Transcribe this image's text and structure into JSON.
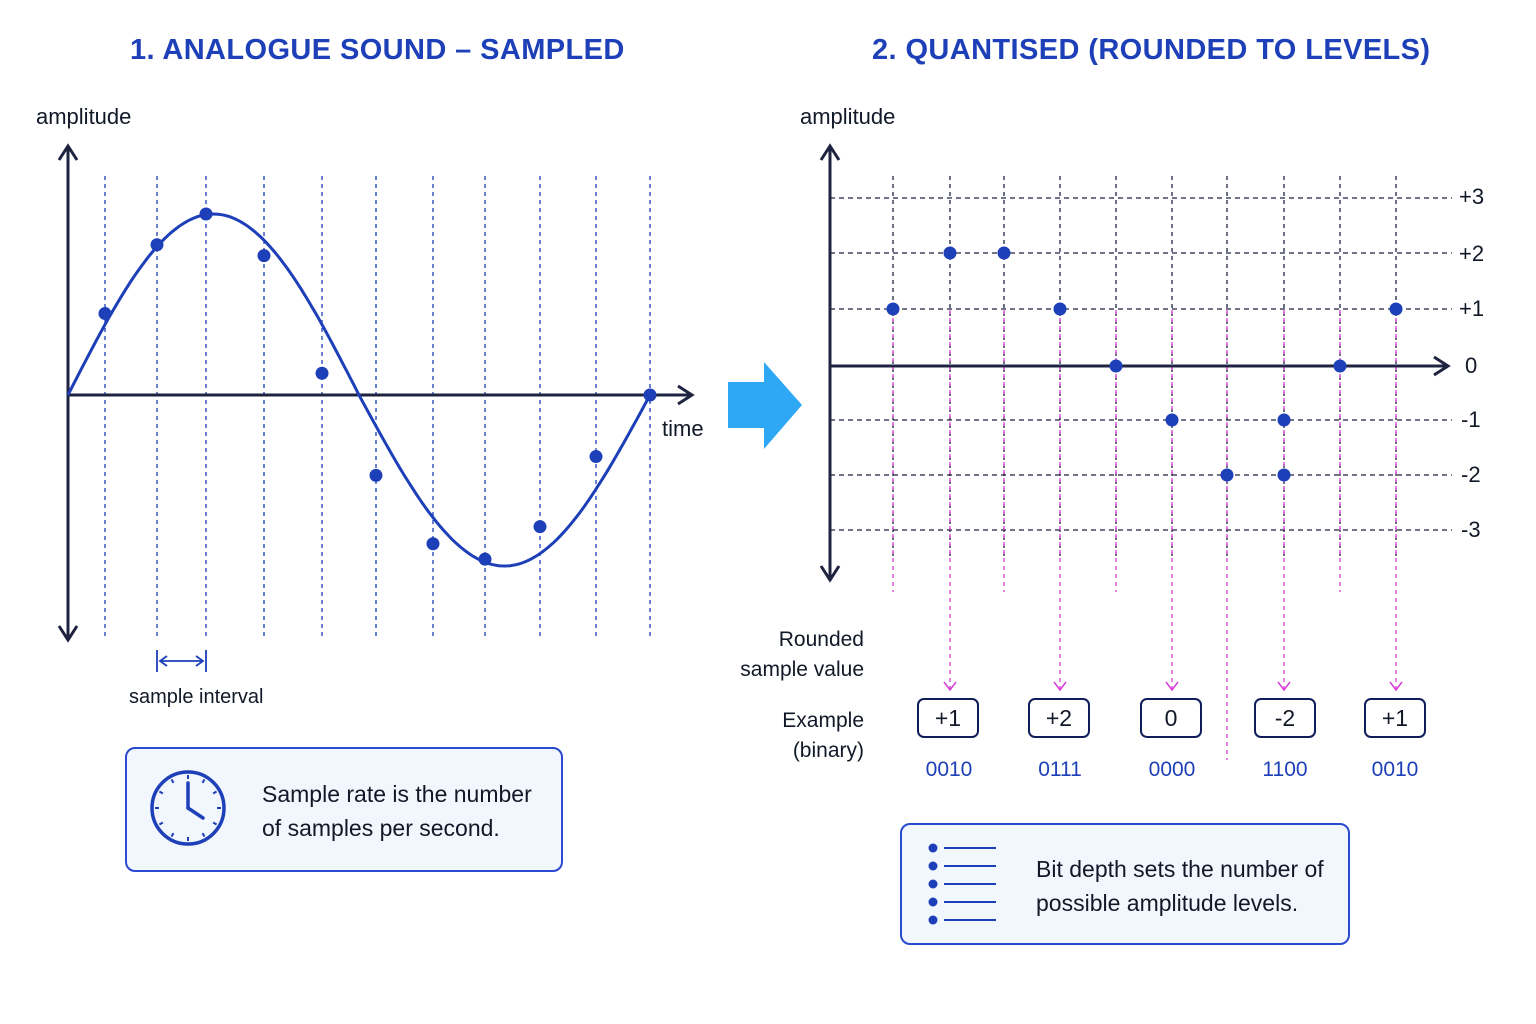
{
  "left_panel": {
    "title": "1.  ANALOGUE SOUND – SAMPLED",
    "y_axis_label": "amplitude",
    "x_axis_label": "time",
    "interval_label": "sample interval",
    "info": {
      "emphasis": "Sample rate",
      "text": " is the number of samples per second."
    },
    "icon": "clock-icon"
  },
  "right_panel": {
    "title": "2. QUANTISED (ROUNDED TO LEVELS)",
    "y_axis_label": "amplitude",
    "rounded_label": "Rounded sample value",
    "example_label": "Example (binary)",
    "info": {
      "emphasis": "Bit depth",
      "text": " sets the number of possible amplitude levels."
    },
    "icon": "list-icon",
    "values": [
      {
        "value": "+1",
        "binary": "0010"
      },
      {
        "value": "+2",
        "binary": "0111"
      },
      {
        "value": "0",
        "binary": "0000"
      },
      {
        "value": "-2",
        "binary": "1100"
      },
      {
        "value": "+1",
        "binary": "0010"
      }
    ]
  },
  "colors": {
    "accent": "#1d3fb8",
    "curve": "#1d3fb8",
    "point": "#1d3fb8",
    "guide": "#d63fd6",
    "arrow": "#2ea8f5",
    "box_border": "#2a4bd1",
    "box_fill": "#f2f6fd"
  },
  "chart_data": [
    {
      "type": "line",
      "title": "1.  ANALOGUE SOUND – SAMPLED",
      "xlabel": "time",
      "ylabel": "amplitude",
      "curve": "one cycle of a sine wave starting at 0",
      "samples": [
        {
          "x": 1,
          "y": 0.45
        },
        {
          "x": 2,
          "y": 0.83
        },
        {
          "x": 3,
          "y": 1.0
        },
        {
          "x": 4,
          "y": 0.77
        },
        {
          "x": 5,
          "y": 0.12
        },
        {
          "x": 6,
          "y": -0.47
        },
        {
          "x": 7,
          "y": -0.87
        },
        {
          "x": 8,
          "y": -0.96
        },
        {
          "x": 9,
          "y": -0.77
        },
        {
          "x": 10,
          "y": -0.36
        },
        {
          "x": 11,
          "y": 0.0
        }
      ],
      "grid": "vertical dashed lines at each sample time"
    },
    {
      "type": "scatter",
      "title": "2. QUANTISED (ROUNDED TO LEVELS)",
      "ylabel": "amplitude",
      "levels": [
        "+3",
        "+2",
        "+1",
        "0",
        "-1",
        "-2",
        "-3"
      ],
      "points": [
        {
          "x": 1,
          "y": 1
        },
        {
          "x": 2,
          "y": 2
        },
        {
          "x": 3,
          "y": 2
        },
        {
          "x": 4,
          "y": 1
        },
        {
          "x": 5,
          "y": 0
        },
        {
          "x": 6,
          "y": -1
        },
        {
          "x": 7,
          "y": -2
        },
        {
          "x": 8,
          "y": -1
        },
        {
          "x": 8,
          "y": -2
        },
        {
          "x": 9,
          "y": 0
        },
        {
          "x": 10,
          "y": 1
        }
      ],
      "ylim": [
        -3,
        3
      ],
      "grid": "horizontal dashed level lines and vertical dashed sample lines"
    }
  ]
}
